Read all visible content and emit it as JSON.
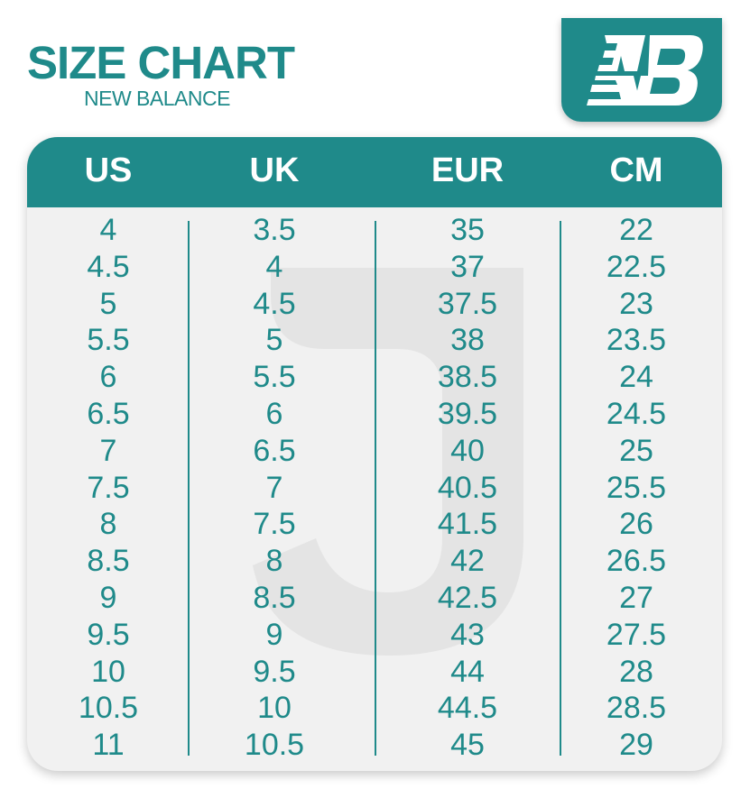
{
  "title": "SIZE CHART",
  "subtitle": "NEW BALANCE",
  "logo": {
    "text": "NB",
    "color": "#1f8a8a"
  },
  "colors": {
    "accent": "#1f8a8a",
    "panel": "#f1f1f1",
    "watermark": "#e2e2e2"
  },
  "table": {
    "headers": [
      "US",
      "UK",
      "EUR",
      "CM"
    ],
    "columns": [
      [
        "4",
        "4.5",
        "5",
        "5.5",
        "6",
        "6.5",
        "7",
        "7.5",
        "8",
        "8.5",
        "9",
        "9.5",
        "10",
        "10.5",
        "11"
      ],
      [
        "3.5",
        "4",
        "4.5",
        "5",
        "5.5",
        "6",
        "6.5",
        "7",
        "7.5",
        "8",
        "8.5",
        "9",
        "9.5",
        "10",
        "10.5"
      ],
      [
        "35",
        "37",
        "37.5",
        "38",
        "38.5",
        "39.5",
        "40",
        "40.5",
        "41.5",
        "42",
        "42.5",
        "43",
        "44",
        "44.5",
        "45"
      ],
      [
        "22",
        "22.5",
        "23",
        "23.5",
        "24",
        "24.5",
        "25",
        "25.5",
        "26",
        "26.5",
        "27",
        "27.5",
        "28",
        "28.5",
        "29"
      ]
    ]
  }
}
